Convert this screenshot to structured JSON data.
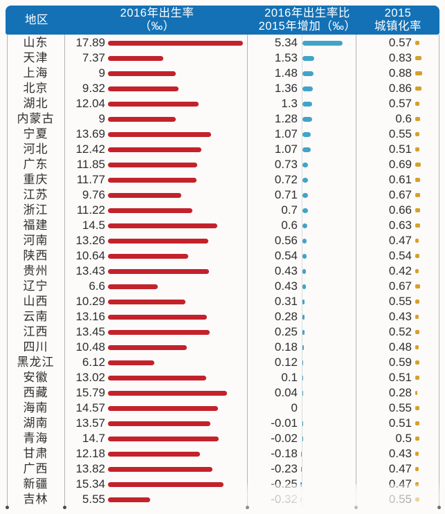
{
  "header": {
    "col_region": "地区",
    "col_birth_l1": "2016年出生率",
    "col_birth_l2": "（‰）",
    "col_increase_l1": "2016年出生率比",
    "col_increase_l2": "2015年增加（‰）",
    "col_urban_l1": "2015",
    "col_urban_l2": "城镇化率"
  },
  "colors": {
    "header_bg": "#1471b5",
    "birth_bar": "#c3222b",
    "increase_bar": "#42a3c9",
    "urban_bar": "#d6a02d"
  },
  "chart_data": {
    "type": "bar",
    "orientation": "horizontal",
    "title": "",
    "legend_position": "none",
    "grid": false,
    "columns": [
      "地区",
      "2016年出生率（‰）",
      "2016年出生率比2015年增加（‰）",
      "2015城镇化率"
    ],
    "categories": [
      "山东",
      "天津",
      "上海",
      "北京",
      "湖北",
      "内蒙古",
      "宁夏",
      "河北",
      "广东",
      "重庆",
      "江苏",
      "浙江",
      "福建",
      "河南",
      "陕西",
      "贵州",
      "辽宁",
      "山西",
      "云南",
      "江西",
      "四川",
      "黑龙江",
      "安徽",
      "西藏",
      "海南",
      "湖南",
      "青海",
      "甘肃",
      "广西",
      "新疆",
      "吉林"
    ],
    "series": [
      {
        "name": "2016年出生率（‰）",
        "color": "#c3222b",
        "values": [
          17.89,
          7.37,
          9,
          9.32,
          12.04,
          9,
          13.69,
          12.42,
          11.85,
          11.77,
          9.76,
          11.22,
          14.5,
          13.26,
          10.64,
          13.43,
          6.6,
          10.29,
          13.16,
          13.45,
          10.48,
          6.12,
          13.02,
          15.79,
          14.57,
          13.57,
          14.7,
          12.18,
          13.82,
          15.34,
          5.55
        ]
      },
      {
        "name": "2016年出生率比2015年增加（‰）",
        "color": "#42a3c9",
        "values": [
          5.34,
          1.53,
          1.48,
          1.36,
          1.3,
          1.28,
          1.07,
          1.07,
          0.73,
          0.72,
          0.71,
          0.7,
          0.6,
          0.56,
          0.54,
          0.43,
          0.43,
          0.31,
          0.28,
          0.25,
          0.18,
          0.12,
          0.1,
          0.04,
          0,
          -0.01,
          -0.02,
          -0.18,
          -0.23,
          -0.25,
          -0.32
        ]
      },
      {
        "name": "2015城镇化率",
        "color": "#d6a02d",
        "values": [
          0.57,
          0.83,
          0.88,
          0.86,
          0.57,
          0.6,
          0.55,
          0.51,
          0.69,
          0.61,
          0.67,
          0.66,
          0.63,
          0.47,
          0.54,
          0.42,
          0.67,
          0.55,
          0.43,
          0.52,
          0.48,
          0.59,
          0.51,
          0.28,
          0.55,
          0.51,
          0.5,
          0.43,
          0.47,
          0.47,
          0.55
        ]
      }
    ]
  }
}
